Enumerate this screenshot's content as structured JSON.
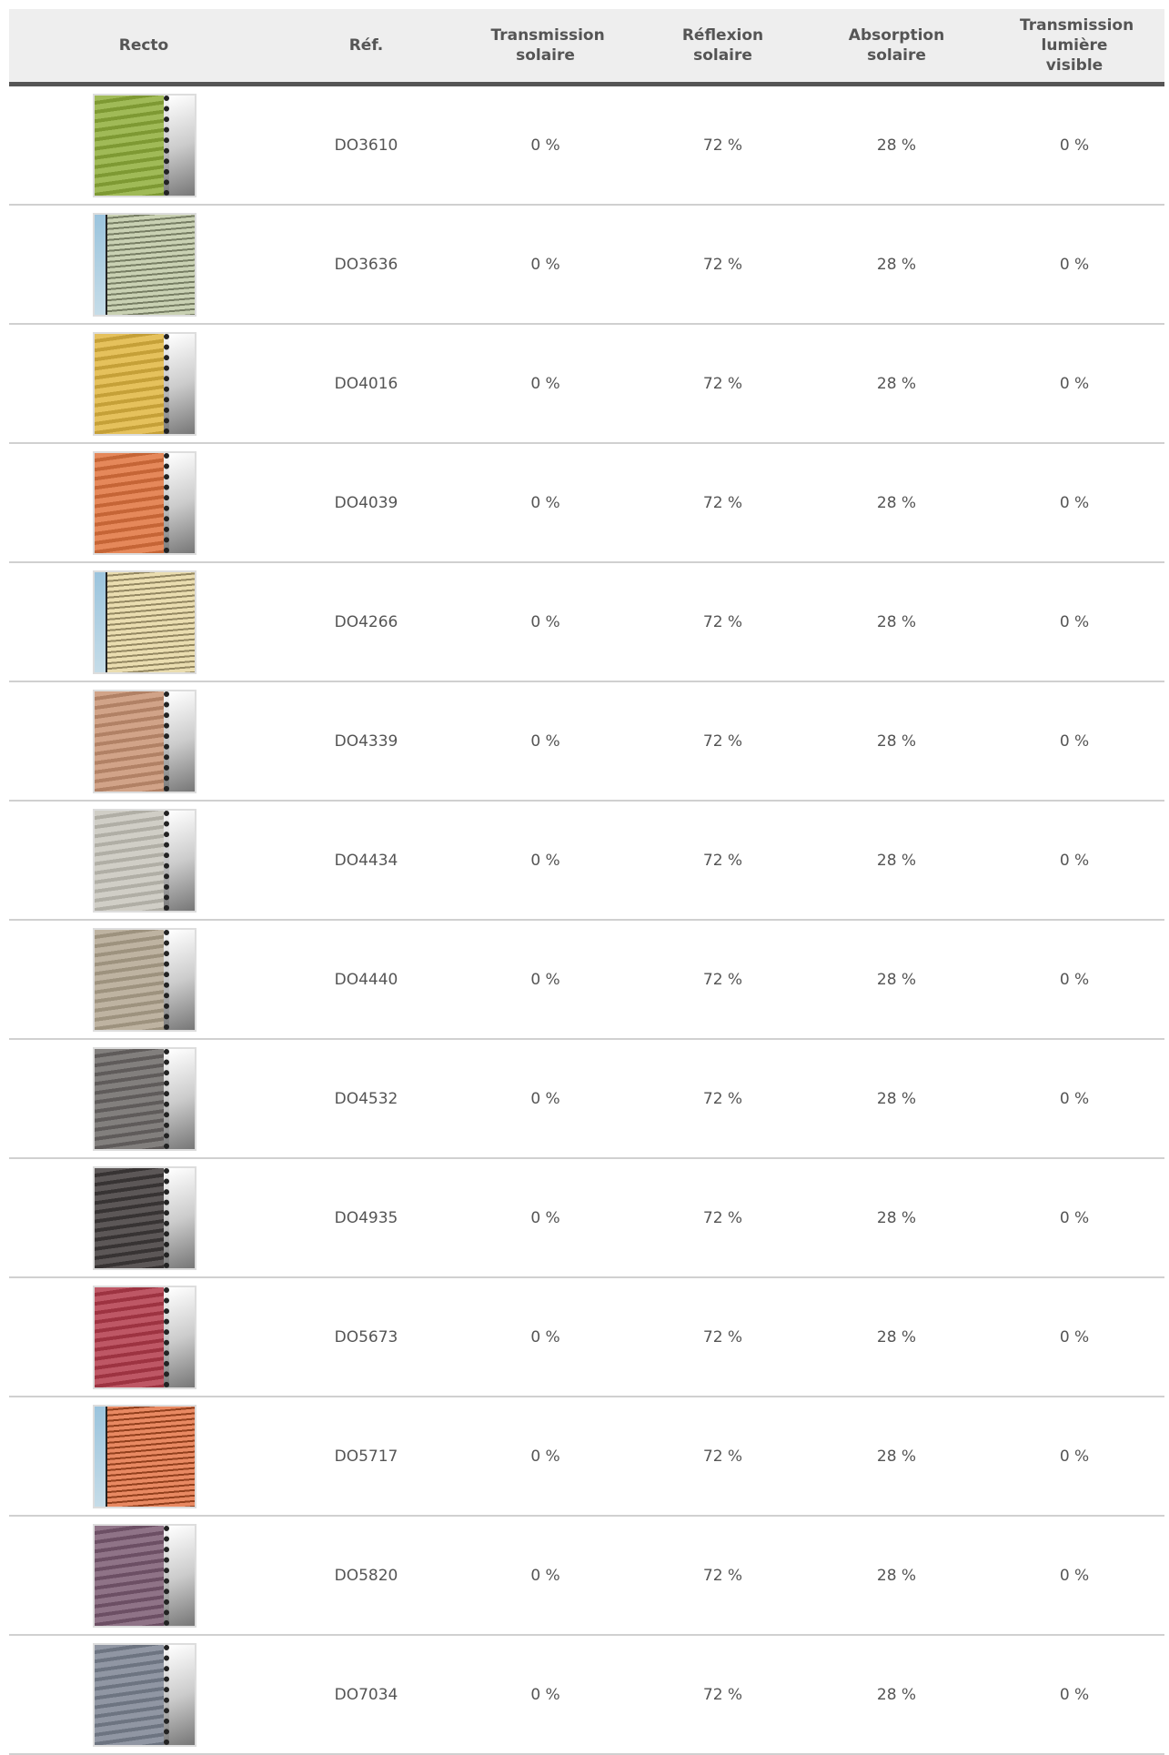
{
  "table": {
    "headers": [
      "Recto",
      "Réf.",
      "Transmission solaire",
      "Réflexion solaire",
      "Absorption solaire",
      "Transmission lumière visible"
    ],
    "rows": [
      [
        "DO3610",
        "0 %",
        "72 %",
        "28 %",
        "0 %"
      ],
      [
        "DO3636",
        "0 %",
        "72 %",
        "28 %",
        "0 %"
      ],
      [
        "DO4016",
        "0 %",
        "72 %",
        "28 %",
        "0 %"
      ],
      [
        "DO4039",
        "0 %",
        "72 %",
        "28 %",
        "0 %"
      ],
      [
        "DO4266",
        "0 %",
        "72 %",
        "28 %",
        "0 %"
      ],
      [
        "DO4339",
        "0 %",
        "72 %",
        "28 %",
        "0 %"
      ],
      [
        "DO4434",
        "0 %",
        "72 %",
        "28 %",
        "0 %"
      ],
      [
        "DO4440",
        "0 %",
        "72 %",
        "28 %",
        "0 %"
      ],
      [
        "DO4532",
        "0 %",
        "72 %",
        "28 %",
        "0 %"
      ],
      [
        "DO4935",
        "0 %",
        "72 %",
        "28 %",
        "0 %"
      ],
      [
        "DO5673",
        "0 %",
        "72 %",
        "28 %",
        "0 %"
      ],
      [
        "DO5717",
        "0 %",
        "72 %",
        "28 %",
        "0 %"
      ],
      [
        "DO5820",
        "0 %",
        "72 %",
        "28 %",
        "0 %"
      ],
      [
        "DO7034",
        "0 %",
        "72 %",
        "28 %",
        "0 %"
      ]
    ]
  }
}
